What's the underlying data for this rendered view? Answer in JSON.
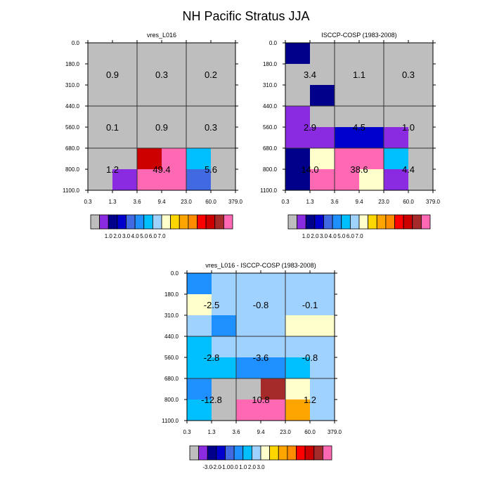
{
  "title": "NH Pacific Stratus JJA",
  "axes": {
    "x_ticks": [
      "0.3",
      "1.3",
      "3.6",
      "9.4",
      "23.0",
      "60.0",
      "379.0"
    ],
    "y_ticks": [
      "0.0",
      "180.0",
      "310.0",
      "440.0",
      "560.0",
      "680.0",
      "800.0",
      "1100.0"
    ]
  },
  "colorbars": {
    "abs": {
      "colors": [
        "#BEBEBE",
        "#8A2BE2",
        "#00008B",
        "#0000CD",
        "#4169E1",
        "#1E90FF",
        "#00BFFF",
        "#A0D2FF",
        "#FFFFCC",
        "#FFD700",
        "#FFA500",
        "#FF8C00",
        "#FF0000",
        "#CD0000",
        "#A52A2A",
        "#FF69B4"
      ],
      "labels": [
        "1.0",
        "2.0",
        "3.0",
        "4.0",
        "5.0",
        "6.0",
        "7.0"
      ]
    },
    "diff": {
      "colors": [
        "#BEBEBE",
        "#8A2BE2",
        "#00008B",
        "#0000CD",
        "#4169E1",
        "#1E90FF",
        "#00BFFF",
        "#A0D2FF",
        "#FFFFCC",
        "#FFD700",
        "#FFA500",
        "#FF8C00",
        "#FF0000",
        "#CD0000",
        "#A52A2A",
        "#FF69B4"
      ],
      "labels": [
        "-3.0",
        "-2.0",
        "-1.0",
        "0.0",
        "1.0",
        "2.0",
        "3.0"
      ]
    }
  },
  "chart_data": [
    {
      "type": "heatmap",
      "title": "vres_L016",
      "colorbar": "abs",
      "cells": [
        [
          "#BEBEBE",
          "#BEBEBE",
          "#BEBEBE",
          "#BEBEBE",
          "#BEBEBE",
          "#BEBEBE"
        ],
        [
          "#BEBEBE",
          "#BEBEBE",
          "#BEBEBE",
          "#BEBEBE",
          "#BEBEBE",
          "#BEBEBE"
        ],
        [
          "#BEBEBE",
          "#BEBEBE",
          "#BEBEBE",
          "#BEBEBE",
          "#BEBEBE",
          "#BEBEBE"
        ],
        [
          "#BEBEBE",
          "#BEBEBE",
          "#BEBEBE",
          "#BEBEBE",
          "#BEBEBE",
          "#BEBEBE"
        ],
        [
          "#BEBEBE",
          "#BEBEBE",
          "#BEBEBE",
          "#BEBEBE",
          "#BEBEBE",
          "#BEBEBE"
        ],
        [
          "#BEBEBE",
          "#BEBEBE",
          "#CD0000",
          "#FF69B4",
          "#00BFFF",
          "#BEBEBE"
        ],
        [
          "#BEBEBE",
          "#8A2BE2",
          "#FF69B4",
          "#FF69B4",
          "#4169E1",
          "#BEBEBE"
        ]
      ],
      "totals": [
        [
          "0.9",
          "0.3",
          "0.2"
        ],
        [
          "0.1",
          "0.9",
          "0.3"
        ],
        [
          "1.2",
          "49.4",
          "5.6"
        ]
      ]
    },
    {
      "type": "heatmap",
      "title": "ISCCP-COSP (1983-2008)",
      "colorbar": "abs",
      "cells": [
        [
          "#00008B",
          "#BEBEBE",
          "#BEBEBE",
          "#BEBEBE",
          "#BEBEBE",
          "#BEBEBE"
        ],
        [
          "#BEBEBE",
          "#BEBEBE",
          "#BEBEBE",
          "#BEBEBE",
          "#BEBEBE",
          "#BEBEBE"
        ],
        [
          "#BEBEBE",
          "#00008B",
          "#BEBEBE",
          "#BEBEBE",
          "#BEBEBE",
          "#BEBEBE"
        ],
        [
          "#8A2BE2",
          "#BEBEBE",
          "#BEBEBE",
          "#BEBEBE",
          "#BEBEBE",
          "#BEBEBE"
        ],
        [
          "#8A2BE2",
          "#8A2BE2",
          "#0000CD",
          "#0000CD",
          "#8A2BE2",
          "#BEBEBE"
        ],
        [
          "#00008B",
          "#FFFFCC",
          "#FF69B4",
          "#FF69B4",
          "#00BFFF",
          "#BEBEBE"
        ],
        [
          "#00008B",
          "#FF69B4",
          "#FF69B4",
          "#FFFFCC",
          "#8A2BE2",
          "#BEBEBE"
        ]
      ],
      "totals": [
        [
          "3.4",
          "1.1",
          "0.3"
        ],
        [
          "2.9",
          "4.5",
          "1.0"
        ],
        [
          "14.0",
          "38.6",
          "4.4"
        ]
      ]
    },
    {
      "type": "heatmap",
      "title": "vres_L016 - ISCCP-COSP (1983-2008)",
      "colorbar": "diff",
      "cells": [
        [
          "#1E90FF",
          "#A0D2FF",
          "#A0D2FF",
          "#A0D2FF",
          "#A0D2FF",
          "#A0D2FF"
        ],
        [
          "#FFFFCC",
          "#A0D2FF",
          "#A0D2FF",
          "#A0D2FF",
          "#A0D2FF",
          "#A0D2FF"
        ],
        [
          "#A0D2FF",
          "#1E90FF",
          "#A0D2FF",
          "#A0D2FF",
          "#FFFFCC",
          "#FFFFCC"
        ],
        [
          "#00BFFF",
          "#A0D2FF",
          "#A0D2FF",
          "#A0D2FF",
          "#A0D2FF",
          "#A0D2FF"
        ],
        [
          "#00BFFF",
          "#00BFFF",
          "#1E90FF",
          "#1E90FF",
          "#00BFFF",
          "#A0D2FF"
        ],
        [
          "#1E90FF",
          "#BEBEBE",
          "#BEBEBE",
          "#A52A2A",
          "#FFFFCC",
          "#A0D2FF"
        ],
        [
          "#00BFFF",
          "#BEBEBE",
          "#FF69B4",
          "#FF69B4",
          "#FFA500",
          "#A0D2FF"
        ]
      ],
      "totals": [
        [
          "-2.5",
          "-0.8",
          "-0.1"
        ],
        [
          "-2.8",
          "-3.6",
          "-0.8"
        ],
        [
          "-12.8",
          "10.8",
          "1.2"
        ]
      ]
    }
  ]
}
